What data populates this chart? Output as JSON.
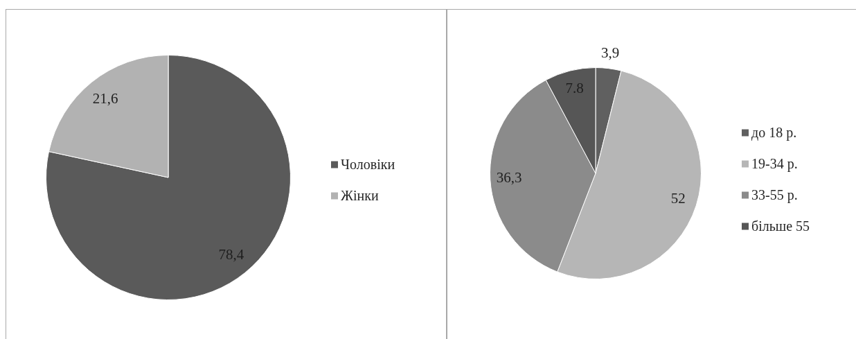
{
  "chart_data": [
    {
      "type": "pie",
      "categories": [
        "Чоловіки",
        "Жінки"
      ],
      "values": [
        78.4,
        21.6
      ],
      "colors": [
        "#5a5a5a",
        "#b2b2b2"
      ],
      "value_labels": [
        "78,4",
        "21,6"
      ],
      "legend": "right"
    },
    {
      "type": "pie",
      "categories": [
        "до 18 р.",
        "19-34 р.",
        "33-55 р.",
        "більше 55"
      ],
      "values": [
        3.9,
        52,
        36.3,
        7.8
      ],
      "colors": [
        "#606060",
        "#b6b6b6",
        "#8b8b8b",
        "#565656"
      ],
      "value_labels": [
        "3,9",
        "52",
        "36,3",
        "7.8"
      ],
      "legend": "right"
    }
  ]
}
